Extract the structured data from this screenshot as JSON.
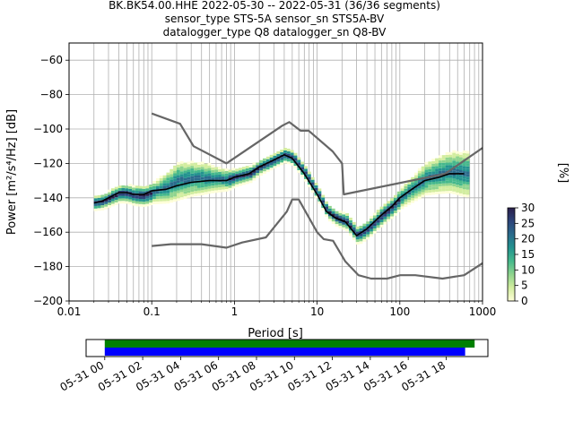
{
  "title": {
    "line1": "BK.BK54.00.HHE   2022-05-30 -- 2022-05-31  (36/36 segments)",
    "line2": "sensor_type STS-5A sensor_sn STS5A-BV",
    "line3": "datalogger_type Q8 datalogger_sn Q8-BV"
  },
  "chart_data": [
    {
      "type": "heatmap",
      "title": "",
      "xlabel": "Period [s]",
      "ylabel": "Power [m²/s⁴/Hz] [dB]",
      "x_scale": "log",
      "xlim": [
        0.01,
        1000
      ],
      "ylim": [
        -200,
        -50
      ],
      "x_ticks": [
        0.01,
        0.1,
        1,
        10,
        100,
        1000
      ],
      "x_tick_labels": [
        "0.01",
        "0.1",
        "1",
        "10",
        "100",
        "1000"
      ],
      "y_ticks": [
        -200,
        -180,
        -160,
        -140,
        -120,
        -100,
        -80,
        -60
      ],
      "y_tick_labels": [
        "−200",
        "−180",
        "−160",
        "−140",
        "−120",
        "−100",
        "−80",
        "−60"
      ],
      "grid": true,
      "colorbar": {
        "label": "[%]",
        "range": [
          0,
          30
        ],
        "ticks": [
          0,
          5,
          10,
          15,
          20,
          25,
          30
        ],
        "tick_labels": [
          "0",
          "5",
          "10",
          "15",
          "20",
          "25",
          "30"
        ],
        "colormap": [
          "#fefed8",
          "#d2ed9f",
          "#8fd48e",
          "#45b88c",
          "#23938f",
          "#2a6b8c",
          "#2c447a",
          "#2a1f4b"
        ]
      },
      "series": [
        {
          "role": "noise-model-high",
          "color": "#666666",
          "points": [
            [
              0.1,
              -91
            ],
            [
              0.22,
              -97
            ],
            [
              0.32,
              -110
            ],
            [
              0.8,
              -120
            ],
            [
              3.8,
              -98
            ],
            [
              4.6,
              -96
            ],
            [
              6.3,
              -101
            ],
            [
              7.9,
              -101
            ],
            [
              15.4,
              -113
            ],
            [
              20,
              -120
            ],
            [
              21,
              -138
            ],
            [
              354,
              -126
            ],
            [
              1000,
              -111
            ]
          ]
        },
        {
          "role": "noise-model-low",
          "color": "#666666",
          "points": [
            [
              0.1,
              -168
            ],
            [
              0.17,
              -167
            ],
            [
              0.4,
              -167
            ],
            [
              0.8,
              -169
            ],
            [
              1.24,
              -166
            ],
            [
              2.4,
              -163
            ],
            [
              4.3,
              -148
            ],
            [
              5.0,
              -141
            ],
            [
              6.0,
              -141
            ],
            [
              10,
              -160
            ],
            [
              12,
              -164
            ],
            [
              15.6,
              -165
            ],
            [
              21.9,
              -177
            ],
            [
              31.6,
              -185
            ],
            [
              45,
              -187
            ],
            [
              70,
              -187
            ],
            [
              101,
              -185
            ],
            [
              154,
              -185
            ],
            [
              328,
              -187
            ],
            [
              600,
              -185
            ],
            [
              1000,
              -178
            ]
          ]
        },
        {
          "role": "median",
          "color": "#000000",
          "points": [
            [
              0.02,
              -143
            ],
            [
              0.025,
              -142
            ],
            [
              0.03,
              -140
            ],
            [
              0.04,
              -137
            ],
            [
              0.05,
              -137
            ],
            [
              0.06,
              -138
            ],
            [
              0.08,
              -138
            ],
            [
              0.1,
              -136
            ],
            [
              0.15,
              -135
            ],
            [
              0.2,
              -133
            ],
            [
              0.3,
              -131
            ],
            [
              0.5,
              -130
            ],
            [
              0.8,
              -130
            ],
            [
              1,
              -128
            ],
            [
              1.5,
              -126
            ],
            [
              2,
              -122
            ],
            [
              3,
              -118
            ],
            [
              4,
              -115
            ],
            [
              5,
              -117
            ],
            [
              7,
              -126
            ],
            [
              10,
              -138
            ],
            [
              13,
              -148
            ],
            [
              17,
              -152
            ],
            [
              22,
              -154
            ],
            [
              30,
              -162
            ],
            [
              40,
              -158
            ],
            [
              60,
              -150
            ],
            [
              80,
              -145
            ],
            [
              100,
              -140
            ],
            [
              150,
              -134
            ],
            [
              200,
              -130
            ],
            [
              300,
              -128
            ],
            [
              400,
              -126
            ],
            [
              600,
              -126
            ]
          ]
        }
      ],
      "density": {
        "spread": [
          [
            0.02,
            2
          ],
          [
            0.04,
            3
          ],
          [
            0.1,
            4
          ],
          [
            0.2,
            9
          ],
          [
            0.4,
            7
          ],
          [
            1,
            3
          ],
          [
            3,
            2
          ],
          [
            10,
            2
          ],
          [
            30,
            3
          ],
          [
            100,
            4
          ],
          [
            300,
            9
          ],
          [
            600,
            11
          ]
        ],
        "offset": [
          [
            0.02,
            0
          ],
          [
            0.1,
            -1
          ],
          [
            0.2,
            3
          ],
          [
            0.35,
            2
          ],
          [
            1,
            0
          ],
          [
            10,
            0
          ],
          [
            100,
            0
          ],
          [
            300,
            2
          ],
          [
            600,
            0
          ]
        ]
      }
    },
    {
      "type": "bar",
      "title": "",
      "x_axis": "time",
      "xlim": [
        "2022-05-30 23:01",
        "2022-05-31 20:12"
      ],
      "x_ticks": [
        "2022-05-31 00:00",
        "2022-05-31 02:00",
        "2022-05-31 04:00",
        "2022-05-31 06:00",
        "2022-05-31 08:00",
        "2022-05-31 10:00",
        "2022-05-31 12:00",
        "2022-05-31 14:00",
        "2022-05-31 16:00",
        "2022-05-31 18:00"
      ],
      "x_tick_labels": [
        "05-31 00",
        "05-31 02",
        "05-31 04",
        "05-31 06",
        "05-31 08",
        "05-31 10",
        "05-31 12",
        "05-31 14",
        "05-31 16",
        "05-31 18"
      ],
      "bars": [
        {
          "role": "data-availability",
          "color": "#008000",
          "start": "2022-05-31 00:00",
          "end": "2022-05-31 19:30"
        },
        {
          "role": "psd-used",
          "color": "#0000ff",
          "start": "2022-05-31 00:00",
          "end": "2022-05-31 19:00"
        }
      ]
    }
  ]
}
